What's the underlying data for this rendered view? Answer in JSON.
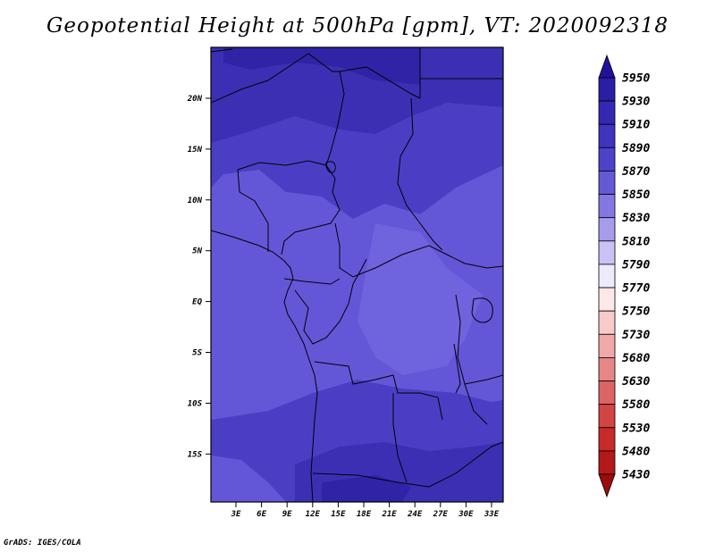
{
  "title": "Geopotential Height at 500hPa [gpm], VT: 2020092318",
  "credit": "GrADS: IGES/COLA",
  "map": {
    "lat_ticks": [
      "20N",
      "15N",
      "10N",
      "5N",
      "EQ",
      "5S",
      "10S",
      "15S"
    ],
    "lon_ticks": [
      "3E",
      "6E",
      "9E",
      "12E",
      "15E",
      "18E",
      "21E",
      "24E",
      "27E",
      "30E",
      "33E"
    ],
    "dominant_field_colors": [
      "#4a3fc4",
      "#3b30b4",
      "#6357d8",
      "#2f24a6"
    ]
  },
  "colorbar": {
    "levels": [
      "5950",
      "5930",
      "5910",
      "5890",
      "5870",
      "5850",
      "5830",
      "5810",
      "5790",
      "5770",
      "5750",
      "5730",
      "5680",
      "5630",
      "5580",
      "5530",
      "5480",
      "5430"
    ],
    "colors": [
      "#20129a",
      "#2a1ea6",
      "#3428b2",
      "#3f34be",
      "#4d43c8",
      "#6659d6",
      "#8477e2",
      "#a69ceb",
      "#c9c2f4",
      "#ecebfb",
      "#fde8e8",
      "#f8caca",
      "#f0a8a8",
      "#e68686",
      "#dd6464",
      "#d34444",
      "#c82a2a",
      "#b41818",
      "#9a0c0c"
    ]
  }
}
